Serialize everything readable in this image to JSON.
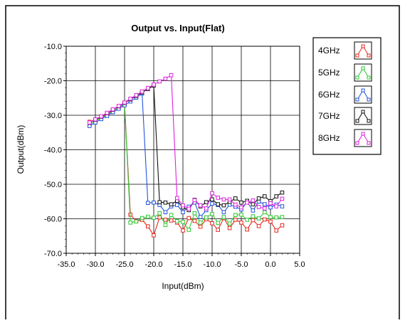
{
  "chart_data": {
    "type": "line",
    "title": "Output vs. Input(Flat)",
    "xlabel": "Input(dBm)",
    "ylabel": "Output(dBm)",
    "xlim": [
      -35,
      5
    ],
    "ylim": [
      -70,
      -10
    ],
    "xticks": [
      -35,
      -30,
      -25,
      -20,
      -15,
      -10,
      -5,
      0,
      5
    ],
    "xtick_labels": [
      "-35.0",
      "-30.0",
      "-25.0",
      "-20.0",
      "-15.0",
      "-10.0",
      "-5.0",
      "0.0",
      "5.0"
    ],
    "yticks": [
      -10,
      -20,
      -30,
      -40,
      -50,
      -60,
      -70
    ],
    "ytick_labels": [
      "-10.0",
      "-20.0",
      "-30.0",
      "-40.0",
      "-50.0",
      "-60.0",
      "-70.0"
    ],
    "grid": true,
    "legend_position": "right",
    "x": [
      -31,
      -30,
      -29,
      -28,
      -27,
      -26,
      -25,
      -24,
      -23,
      -22,
      -21,
      -20,
      -19,
      -18,
      -17,
      -16,
      -15,
      -14,
      -13,
      -12,
      -11,
      -10,
      -9,
      -8,
      -7,
      -6,
      -5,
      -4,
      -3,
      -2,
      -1,
      0,
      1,
      2
    ],
    "series": [
      {
        "name": "4GHz",
        "color": "#e8281e",
        "values": [
          -31.9,
          -31.3,
          -30.6,
          -29.7,
          -28.7,
          -27.8,
          -26.8,
          -58.8,
          -60.7,
          -60.3,
          -62.2,
          -64.8,
          -59.6,
          -60.3,
          -60.5,
          -61.1,
          -63.4,
          -59.8,
          -60.6,
          -62.3,
          -60.1,
          -61.3,
          -63.2,
          -59.8,
          -62.7,
          -60.3,
          -61.1,
          -63.1,
          -60.4,
          -62.1,
          -60.2,
          -60.8,
          -63.4,
          -61.9
        ]
      },
      {
        "name": "5GHz",
        "color": "#2ec832",
        "values": [
          -32.7,
          -31.6,
          -30.8,
          -29.9,
          -28.8,
          -27.8,
          -26.7,
          -61.1,
          -60.8,
          -59.8,
          -59.4,
          -59.7,
          -58.4,
          -61.8,
          -58.9,
          -60.7,
          -60.9,
          -63.2,
          -58.4,
          -61.1,
          -59.6,
          -58.6,
          -61.2,
          -59.5,
          -61.4,
          -58.9,
          -58.8,
          -60.3,
          -59.3,
          -59.9,
          -58.1,
          -59.5,
          -59.6,
          -59.5
        ]
      },
      {
        "name": "6GHz",
        "color": "#2255dd",
        "values": [
          -33.1,
          -32.1,
          -31.1,
          -30.2,
          -29.1,
          -28.1,
          -27.1,
          -26.0,
          -24.9,
          -23.7,
          -55.4,
          -55.3,
          -56.0,
          -58.1,
          -56.4,
          -56.0,
          -58.1,
          -56.5,
          -55.3,
          -59.5,
          -57.5,
          -55.6,
          -56.0,
          -58.1,
          -55.9,
          -56.5,
          -57.3,
          -55.2,
          -57.6,
          -55.0,
          -55.8,
          -56.7,
          -55.9,
          -56.4
        ]
      },
      {
        "name": "7GHz",
        "color": "#111111",
        "values": [
          -32.2,
          -31.3,
          -30.4,
          -29.4,
          -28.4,
          -27.4,
          -26.4,
          -25.4,
          -24.4,
          -23.4,
          -22.4,
          -21.4,
          -55.2,
          -55.3,
          -55.8,
          -54.8,
          -56.7,
          -57.5,
          -54.5,
          -56.4,
          -55.2,
          -54.4,
          -55.8,
          -56.1,
          -55.1,
          -54.1,
          -55.3,
          -54.8,
          -55.8,
          -54.1,
          -53.5,
          -54.9,
          -53.5,
          -52.4
        ]
      },
      {
        "name": "8GHz",
        "color": "#dd22dd",
        "values": [
          -32.1,
          -31.2,
          -30.3,
          -29.3,
          -28.3,
          -27.3,
          -26.3,
          -25.2,
          -24.2,
          -23.1,
          -22.1,
          -21.1,
          -20.2,
          -19.4,
          -18.4,
          -54.0,
          -56.1,
          -57.1,
          -54.6,
          -56.1,
          -57.0,
          -52.6,
          -53.9,
          -54.4,
          -54.4,
          -55.9,
          -56.7,
          -55.3,
          -54.7,
          -56.6,
          -57.0,
          -55.5,
          -56.4,
          -54.2
        ]
      }
    ]
  }
}
